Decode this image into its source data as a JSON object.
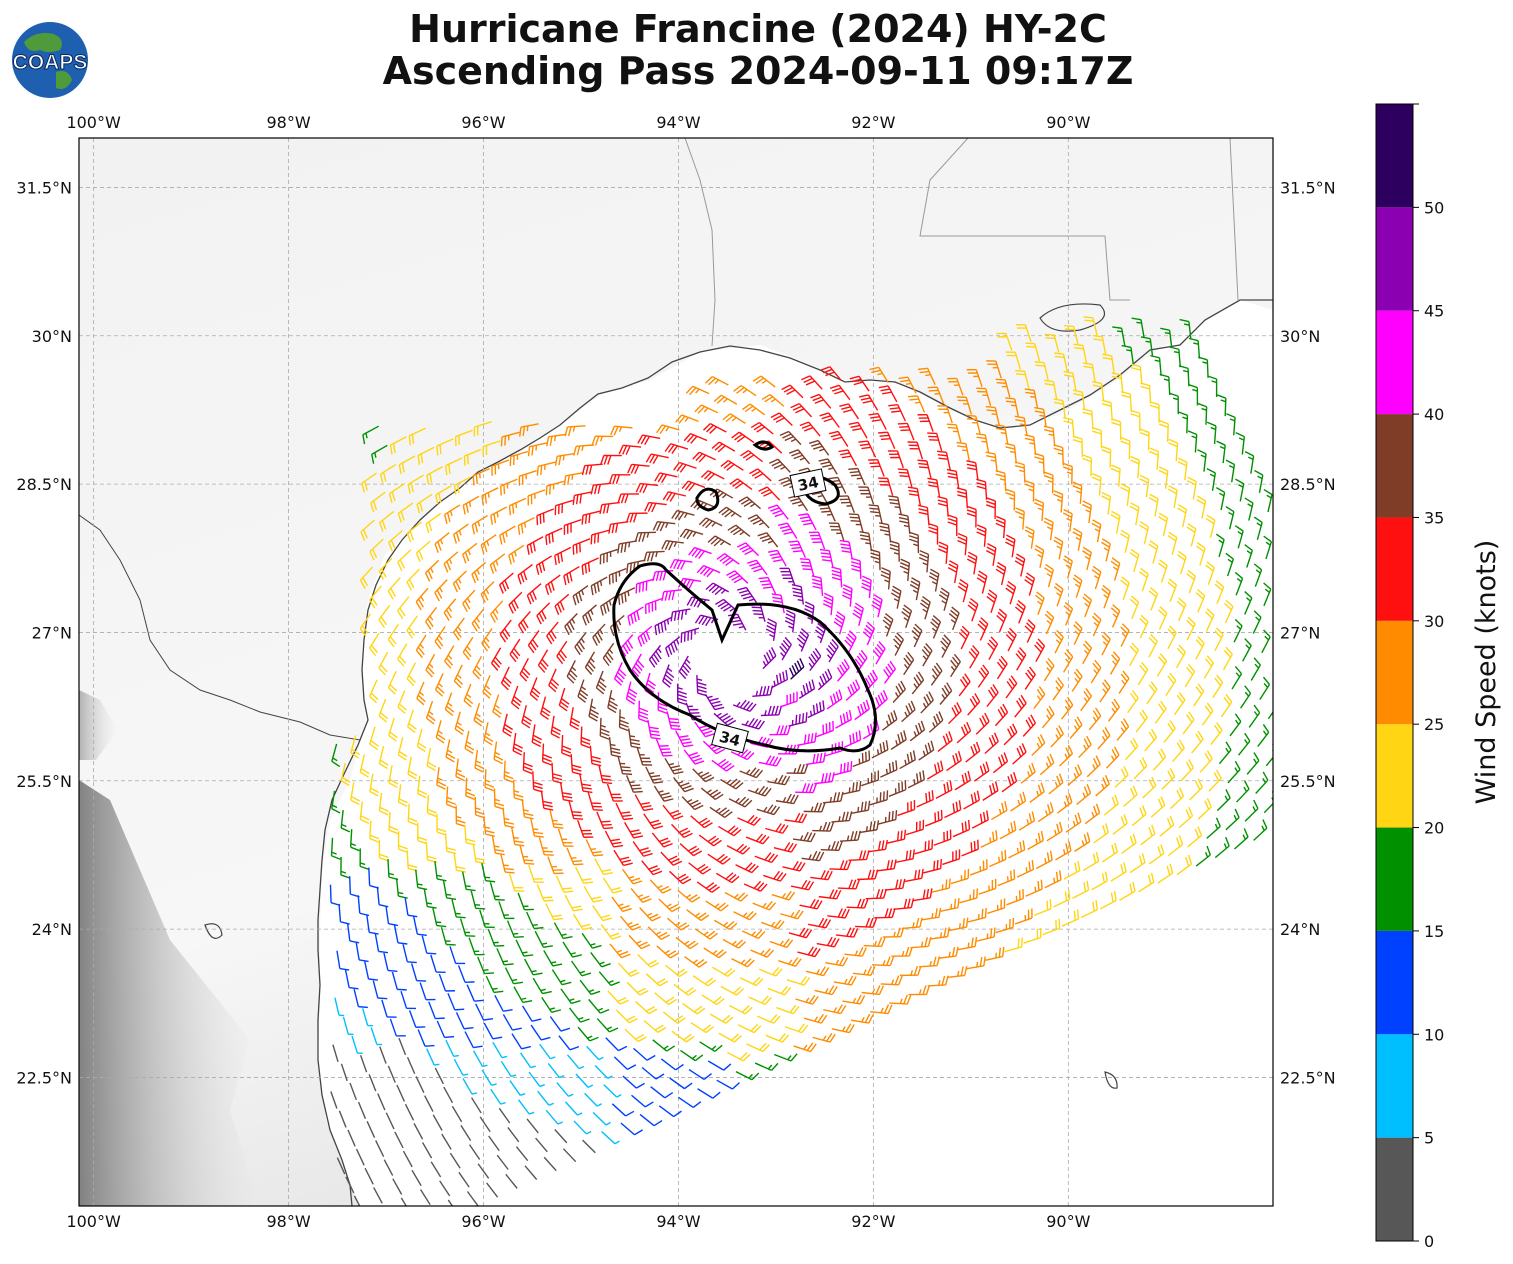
{
  "title": {
    "line1": "Hurricane Francine (2024) HY-2C",
    "line2": "Ascending Pass 2024-09-11 09:17Z"
  },
  "logo": {
    "text": "COAPS",
    "icon": "globe-icon"
  },
  "chart_data": {
    "type": "map-wind-barbs",
    "lon_ticks": [
      "100°W",
      "98°W",
      "96°W",
      "94°W",
      "92°W",
      "90°W"
    ],
    "lon_values": [
      -100,
      -98,
      -96,
      -94,
      -92,
      -90
    ],
    "lat_ticks": [
      "31.5°N",
      "30°N",
      "28.5°N",
      "27°N",
      "25.5°N",
      "24°N",
      "22.5°N"
    ],
    "lat_values": [
      31.5,
      30,
      28.5,
      27,
      25.5,
      24,
      22.5
    ],
    "lon_range": [
      -100.15,
      -87.9
    ],
    "lat_range": [
      21.2,
      32.0
    ],
    "grid": true,
    "storm_center": {
      "lon": -93.5,
      "lat": 26.75
    },
    "contour": {
      "label": "34",
      "value": 34
    },
    "colorbar": {
      "label": "Wind Speed (knots)",
      "ticks": [
        0,
        5,
        10,
        15,
        20,
        25,
        30,
        35,
        40,
        45,
        50
      ],
      "bins": [
        {
          "min": 0,
          "max": 5,
          "color": "#575757"
        },
        {
          "min": 5,
          "max": 10,
          "color": "#00bfff"
        },
        {
          "min": 10,
          "max": 15,
          "color": "#0040ff"
        },
        {
          "min": 15,
          "max": 20,
          "color": "#009000"
        },
        {
          "min": 20,
          "max": 25,
          "color": "#ffd514"
        },
        {
          "min": 25,
          "max": 30,
          "color": "#ff8c00"
        },
        {
          "min": 30,
          "max": 35,
          "color": "#ff1010"
        },
        {
          "min": 35,
          "max": 40,
          "color": "#7f3c26"
        },
        {
          "min": 40,
          "max": 45,
          "color": "#ff00ff"
        },
        {
          "min": 45,
          "max": 50,
          "color": "#8b00b0"
        },
        {
          "min": 50,
          "max": 55,
          "color": "#2d0060"
        }
      ]
    }
  }
}
